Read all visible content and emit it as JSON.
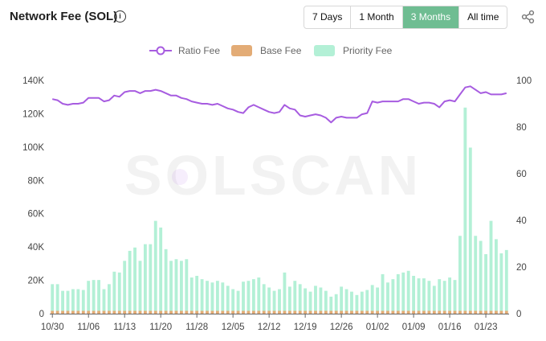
{
  "header": {
    "title": "Network Fee (SOL)",
    "info_glyph": "i",
    "ranges": [
      {
        "label": "7 Days",
        "active": false
      },
      {
        "label": "1 Month",
        "active": false
      },
      {
        "label": "3 Months",
        "active": true
      },
      {
        "label": "All time",
        "active": false
      }
    ],
    "active_color": "#6fbd92"
  },
  "watermark": "SOLSCAN",
  "chart_data": {
    "type": "bar",
    "legend": [
      {
        "name": "Ratio Fee",
        "color": "#a75ce0",
        "kind": "line"
      },
      {
        "name": "Base Fee",
        "color": "#e3ac76",
        "kind": "box"
      },
      {
        "name": "Priority Fee",
        "color": "#b3f0d6",
        "kind": "box"
      }
    ],
    "x_ticks": [
      "10/30",
      "11/06",
      "11/13",
      "11/20",
      "11/28",
      "12/05",
      "12/12",
      "12/19",
      "12/26",
      "01/02",
      "01/09",
      "01/16",
      "01/23"
    ],
    "y_left": {
      "ticks": [
        "0",
        "20K",
        "40K",
        "60K",
        "80K",
        "100K",
        "120K",
        "140K"
      ],
      "range": [
        0,
        140000
      ]
    },
    "y_right": {
      "ticks": [
        "0",
        "20",
        "40",
        "60",
        "80",
        "100"
      ],
      "range": [
        0,
        100
      ]
    },
    "series": [
      {
        "name": "Base Fee",
        "type": "bar",
        "stack": "fee",
        "values": [
          1700,
          1700,
          1700,
          1700,
          1700,
          1700,
          1700,
          1700,
          1700,
          1700,
          1700,
          1700,
          1700,
          1700,
          1700,
          1700,
          1700,
          1700,
          1700,
          1700,
          1700,
          1700,
          1700,
          1700,
          1700,
          1700,
          1700,
          1700,
          1700,
          1700,
          1700,
          1700,
          1700,
          1700,
          1700,
          1700,
          1700,
          1700,
          1700,
          1700,
          1700,
          1700,
          1700,
          1700,
          1700,
          1700,
          1700,
          1700,
          1700,
          1700,
          1700,
          1700,
          1700,
          1700,
          1700,
          1700,
          1700,
          1700,
          1700,
          1700,
          1700,
          1700,
          1700,
          1700,
          1700,
          1700,
          1700,
          1700,
          1700,
          1700,
          1700,
          1700,
          1700,
          1700,
          1700,
          1700,
          1700,
          1700,
          1700,
          1700,
          1700,
          1700,
          1700,
          1700,
          1700,
          1700,
          1700,
          1700,
          1700
        ]
      },
      {
        "name": "Priority Fee",
        "type": "bar",
        "stack": "fee",
        "values": [
          16000,
          16000,
          12000,
          12000,
          13000,
          13000,
          12500,
          18000,
          18500,
          18500,
          13000,
          16000,
          23500,
          23000,
          30000,
          36000,
          38000,
          30000,
          40000,
          40000,
          54000,
          50000,
          37000,
          30000,
          31000,
          30000,
          31000,
          20000,
          21000,
          19000,
          18000,
          17000,
          18000,
          17000,
          15000,
          13000,
          12000,
          17500,
          18000,
          19000,
          20000,
          16000,
          14000,
          12000,
          13000,
          23000,
          14500,
          18000,
          16000,
          13500,
          11500,
          15000,
          14000,
          12000,
          8500,
          10000,
          14500,
          13000,
          11500,
          9500,
          11500,
          12500,
          15500,
          14000,
          22000,
          17000,
          19000,
          22000,
          23000,
          24000,
          21000,
          19500,
          19500,
          18000,
          15000,
          19000,
          18000,
          20000,
          18500,
          45000,
          122000,
          98000,
          45000,
          42000,
          34000,
          54000,
          43000,
          34500,
          36500
        ]
      },
      {
        "name": "Ratio Fee",
        "type": "line",
        "axis": "right",
        "values": [
          92.0,
          91.5,
          90.0,
          89.5,
          90.0,
          90.0,
          90.5,
          92.5,
          92.5,
          92.5,
          91.0,
          91.5,
          93.5,
          93.0,
          95.0,
          95.5,
          95.5,
          94.5,
          95.5,
          95.5,
          96.0,
          95.5,
          94.5,
          93.5,
          93.5,
          92.5,
          92.0,
          91.0,
          90.5,
          90.0,
          90.0,
          89.5,
          90.0,
          89.0,
          88.0,
          87.5,
          86.5,
          86.0,
          88.5,
          89.5,
          88.5,
          87.5,
          86.5,
          86.0,
          86.5,
          89.5,
          88.0,
          87.5,
          85.0,
          84.5,
          85.0,
          85.5,
          85.0,
          84.0,
          82.0,
          84.0,
          84.5,
          84.0,
          84.0,
          84.0,
          85.5,
          86.0,
          91.0,
          90.5,
          91.0,
          91.0,
          91.0,
          91.0,
          92.0,
          92.0,
          91.0,
          90.0,
          90.5,
          90.5,
          90.0,
          88.5,
          91.0,
          91.5,
          91.0,
          94.0,
          97.0,
          97.5,
          96.0,
          94.5,
          95.0,
          94.0,
          94.0,
          94.0,
          94.5
        ]
      }
    ],
    "grid": false,
    "legend_placement": "top-center"
  }
}
